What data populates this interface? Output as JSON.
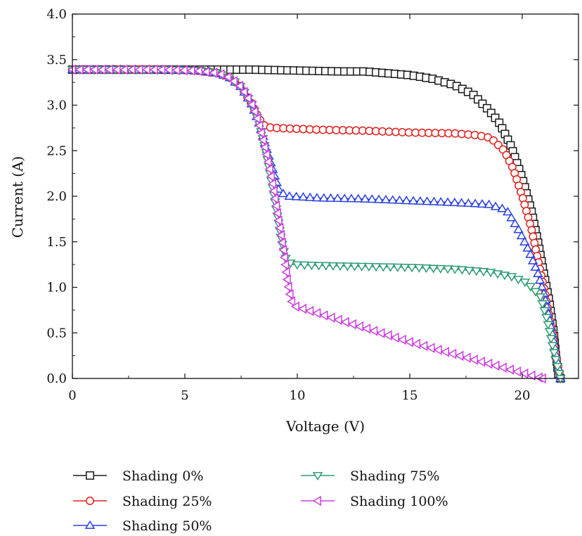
{
  "chart_data": {
    "type": "line",
    "xlabel": "Voltage (V)",
    "ylabel": "Current (A)",
    "xlim": [
      0,
      22.5
    ],
    "ylim": [
      0,
      4.0
    ],
    "xticks": [
      0,
      5,
      10,
      15,
      20
    ],
    "yticks": [
      0.0,
      0.5,
      1.0,
      1.5,
      2.0,
      2.5,
      3.0,
      3.5,
      4.0
    ],
    "xtick_labels": [
      "0",
      "5",
      "10",
      "15",
      "20"
    ],
    "ytick_labels": [
      "0.0",
      "0.5",
      "1.0",
      "1.5",
      "2.0",
      "2.5",
      "3.0",
      "3.5",
      "4.0"
    ],
    "grid": false,
    "legend_position": "bottom",
    "series": [
      {
        "name": "Shading 0%",
        "color": "#1a1a1a",
        "marker": "square",
        "points": [
          [
            0,
            3.39
          ],
          [
            2,
            3.39
          ],
          [
            4,
            3.39
          ],
          [
            6,
            3.39
          ],
          [
            8,
            3.39
          ],
          [
            10,
            3.38
          ],
          [
            12,
            3.37
          ],
          [
            13,
            3.37
          ],
          [
            14,
            3.35
          ],
          [
            15,
            3.33
          ],
          [
            16,
            3.29
          ],
          [
            17,
            3.22
          ],
          [
            17.8,
            3.12
          ],
          [
            18.5,
            2.95
          ],
          [
            19,
            2.8
          ],
          [
            19.5,
            2.55
          ],
          [
            20,
            2.2
          ],
          [
            20.4,
            1.85
          ],
          [
            20.7,
            1.5
          ],
          [
            21,
            1.1
          ],
          [
            21.2,
            0.85
          ],
          [
            21.4,
            0.5
          ],
          [
            21.5,
            0.25
          ],
          [
            21.6,
            0.05
          ],
          [
            21.7,
            0.0
          ]
        ]
      },
      {
        "name": "Shading 25%",
        "color": "#e0201b",
        "marker": "circle",
        "points": [
          [
            0,
            3.39
          ],
          [
            2,
            3.39
          ],
          [
            4,
            3.39
          ],
          [
            5.5,
            3.38
          ],
          [
            6.5,
            3.35
          ],
          [
            7,
            3.3
          ],
          [
            7.5,
            3.2
          ],
          [
            8,
            3.0
          ],
          [
            8.3,
            2.85
          ],
          [
            8.6,
            2.76
          ],
          [
            9,
            2.75
          ],
          [
            11,
            2.73
          ],
          [
            13,
            2.72
          ],
          [
            15,
            2.7
          ],
          [
            17,
            2.69
          ],
          [
            18,
            2.67
          ],
          [
            18.6,
            2.64
          ],
          [
            19.2,
            2.5
          ],
          [
            19.6,
            2.3
          ],
          [
            20,
            2.0
          ],
          [
            20.4,
            1.65
          ],
          [
            20.7,
            1.3
          ],
          [
            21,
            0.95
          ],
          [
            21.3,
            0.55
          ],
          [
            21.5,
            0.25
          ],
          [
            21.7,
            0.0
          ]
        ]
      },
      {
        "name": "Shading 50%",
        "color": "#2a3fe0",
        "marker": "triangle-up",
        "points": [
          [
            0,
            3.39
          ],
          [
            2,
            3.39
          ],
          [
            4,
            3.39
          ],
          [
            5.5,
            3.38
          ],
          [
            6.5,
            3.35
          ],
          [
            7,
            3.3
          ],
          [
            7.5,
            3.2
          ],
          [
            8,
            3.0
          ],
          [
            8.3,
            2.8
          ],
          [
            8.6,
            2.55
          ],
          [
            8.9,
            2.3
          ],
          [
            9.2,
            2.05
          ],
          [
            9.6,
            2.0
          ],
          [
            11,
            1.98
          ],
          [
            13,
            1.97
          ],
          [
            15,
            1.95
          ],
          [
            17,
            1.93
          ],
          [
            18.5,
            1.91
          ],
          [
            19.3,
            1.85
          ],
          [
            19.8,
            1.65
          ],
          [
            20.3,
            1.4
          ],
          [
            20.7,
            1.15
          ],
          [
            21,
            0.9
          ],
          [
            21.3,
            0.55
          ],
          [
            21.5,
            0.25
          ],
          [
            21.7,
            0.0
          ]
        ]
      },
      {
        "name": "Shading 75%",
        "color": "#2e9b73",
        "marker": "triangle-down",
        "points": [
          [
            0,
            3.39
          ],
          [
            2,
            3.39
          ],
          [
            4,
            3.39
          ],
          [
            5.5,
            3.38
          ],
          [
            6.5,
            3.35
          ],
          [
            7,
            3.3
          ],
          [
            7.5,
            3.2
          ],
          [
            8,
            3.0
          ],
          [
            8.3,
            2.8
          ],
          [
            8.6,
            2.5
          ],
          [
            8.9,
            2.1
          ],
          [
            9.1,
            1.8
          ],
          [
            9.3,
            1.5
          ],
          [
            9.5,
            1.3
          ],
          [
            9.8,
            1.25
          ],
          [
            11,
            1.24
          ],
          [
            13,
            1.23
          ],
          [
            15,
            1.22
          ],
          [
            17,
            1.2
          ],
          [
            18.5,
            1.17
          ],
          [
            19.5,
            1.12
          ],
          [
            20.2,
            1.05
          ],
          [
            20.8,
            0.9
          ],
          [
            21.1,
            0.65
          ],
          [
            21.4,
            0.3
          ],
          [
            21.7,
            0.0
          ]
        ]
      },
      {
        "name": "Shading 100%",
        "color": "#cc3fe0",
        "marker": "triangle-left",
        "points": [
          [
            0,
            3.39
          ],
          [
            2,
            3.39
          ],
          [
            4,
            3.39
          ],
          [
            5.5,
            3.38
          ],
          [
            6.5,
            3.35
          ],
          [
            7,
            3.3
          ],
          [
            7.5,
            3.2
          ],
          [
            8,
            3.0
          ],
          [
            8.3,
            2.8
          ],
          [
            8.6,
            2.5
          ],
          [
            8.9,
            2.15
          ],
          [
            9.1,
            1.85
          ],
          [
            9.3,
            1.55
          ],
          [
            9.45,
            1.3
          ],
          [
            9.55,
            1.1
          ],
          [
            9.65,
            0.95
          ],
          [
            9.8,
            0.8
          ],
          [
            15,
            0.4
          ],
          [
            20.9,
            0.0
          ]
        ]
      }
    ]
  }
}
